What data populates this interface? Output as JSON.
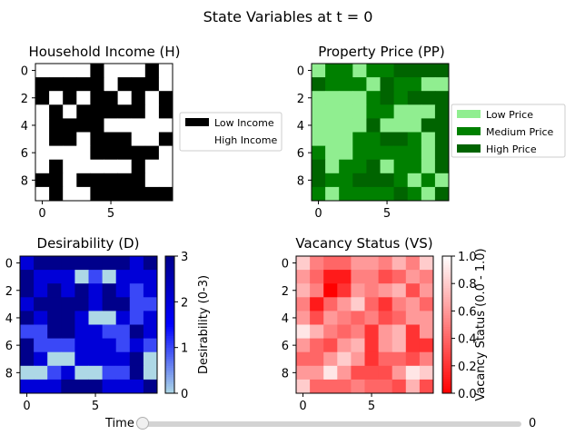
{
  "figure": {
    "suptitle": "State Variables at t = 0"
  },
  "slider": {
    "label": "Time",
    "value": "0",
    "min": 0,
    "max": 100,
    "position": 0
  },
  "chart_data": [
    {
      "type": "heatmap",
      "title": "Household Income (H)",
      "colors": [
        "#ffffff",
        "#000000"
      ],
      "xticks": [
        0,
        5
      ],
      "yticks": [
        0,
        2,
        4,
        6,
        8
      ],
      "legend": {
        "placement": "right",
        "entries": [
          {
            "label": "Low Income",
            "color": "#000000"
          },
          {
            "label": "High Income",
            "color": "#ffffff"
          }
        ]
      },
      "values": [
        [
          0,
          0,
          0,
          0,
          1,
          0,
          0,
          0,
          1,
          0
        ],
        [
          1,
          1,
          1,
          1,
          1,
          0,
          1,
          1,
          1,
          0
        ],
        [
          1,
          0,
          1,
          0,
          1,
          1,
          0,
          1,
          0,
          1
        ],
        [
          0,
          1,
          0,
          1,
          1,
          1,
          1,
          1,
          0,
          1
        ],
        [
          0,
          1,
          1,
          1,
          1,
          0,
          0,
          0,
          0,
          0
        ],
        [
          0,
          1,
          1,
          0,
          1,
          1,
          1,
          0,
          0,
          1
        ],
        [
          0,
          0,
          0,
          0,
          1,
          1,
          1,
          1,
          1,
          0
        ],
        [
          0,
          1,
          0,
          0,
          0,
          0,
          0,
          1,
          0,
          0
        ],
        [
          1,
          1,
          0,
          1,
          1,
          1,
          1,
          1,
          0,
          0
        ],
        [
          0,
          1,
          0,
          0,
          1,
          1,
          1,
          1,
          1,
          1
        ]
      ]
    },
    {
      "type": "heatmap",
      "title": "Property Price (PP)",
      "colors": [
        "#90ee90",
        "#008000",
        "#006400"
      ],
      "xticks": [
        0,
        5
      ],
      "yticks": [
        0,
        2,
        4,
        6,
        8
      ],
      "legend": {
        "placement": "right",
        "entries": [
          {
            "label": "Low Price",
            "color": "#90ee90"
          },
          {
            "label": "Medium Price",
            "color": "#008000"
          },
          {
            "label": "High Price",
            "color": "#006400"
          }
        ]
      },
      "values": [
        [
          0,
          1,
          1,
          0,
          1,
          1,
          2,
          2,
          2,
          2
        ],
        [
          2,
          1,
          1,
          1,
          0,
          2,
          1,
          1,
          0,
          0
        ],
        [
          0,
          0,
          0,
          0,
          1,
          2,
          1,
          2,
          2,
          2
        ],
        [
          0,
          0,
          0,
          0,
          1,
          1,
          0,
          0,
          0,
          2
        ],
        [
          0,
          0,
          0,
          0,
          2,
          0,
          0,
          0,
          2,
          2
        ],
        [
          0,
          0,
          0,
          1,
          1,
          2,
          2,
          1,
          0,
          2
        ],
        [
          1,
          0,
          0,
          1,
          1,
          1,
          1,
          1,
          0,
          2
        ],
        [
          2,
          0,
          1,
          1,
          2,
          0,
          1,
          1,
          0,
          2
        ],
        [
          2,
          1,
          1,
          2,
          2,
          2,
          1,
          0,
          1,
          0
        ],
        [
          1,
          0,
          1,
          1,
          1,
          1,
          2,
          1,
          0,
          2
        ]
      ]
    },
    {
      "type": "heatmap",
      "title": "Desirability (D)",
      "colorbar": {
        "label": "Desirability (0-3)",
        "ticks": [
          0,
          1,
          2,
          3
        ],
        "range": [
          0,
          3
        ],
        "colors": [
          "#add8e6",
          "#0000ff",
          "#00008b"
        ]
      },
      "xticks": [
        0,
        5
      ],
      "yticks": [
        0,
        2,
        4,
        6,
        8
      ],
      "values": [
        [
          2,
          3,
          3,
          3,
          3,
          3,
          3,
          3,
          2,
          3
        ],
        [
          3,
          2,
          2,
          2,
          0,
          1,
          0,
          2,
          2,
          2
        ],
        [
          3,
          2,
          3,
          2,
          3,
          2,
          3,
          2,
          1,
          2
        ],
        [
          2,
          3,
          3,
          3,
          3,
          2,
          3,
          3,
          1,
          1
        ],
        [
          3,
          2,
          3,
          3,
          2,
          0,
          0,
          2,
          1,
          2
        ],
        [
          1,
          1,
          3,
          3,
          2,
          2,
          1,
          1,
          3,
          2
        ],
        [
          3,
          1,
          1,
          1,
          2,
          2,
          2,
          1,
          2,
          1
        ],
        [
          3,
          2,
          0,
          0,
          2,
          2,
          2,
          2,
          3,
          0
        ],
        [
          0,
          0,
          1,
          2,
          0,
          0,
          1,
          1,
          3,
          0
        ],
        [
          2,
          2,
          2,
          3,
          3,
          3,
          2,
          2,
          2,
          3
        ]
      ]
    },
    {
      "type": "heatmap",
      "title": "Vacancy Status (VS)",
      "colorbar": {
        "label": "Vacancy Status (0.0 - 1.0)",
        "ticks": [
          0.0,
          0.2,
          0.4,
          0.6,
          0.8,
          1.0
        ],
        "range": [
          0,
          1
        ],
        "colors": [
          "#ff0000",
          "#ffffff"
        ]
      },
      "xticks": [
        0,
        5
      ],
      "yticks": [
        0,
        2,
        4,
        6,
        8
      ],
      "values": [
        [
          0.8,
          0.5,
          0.4,
          0.4,
          0.6,
          0.6,
          0.5,
          0.7,
          0.5,
          0.8
        ],
        [
          0.6,
          0.4,
          0.1,
          0.1,
          0.5,
          0.5,
          0.3,
          0.4,
          0.6,
          0.5
        ],
        [
          0.7,
          0.5,
          0.0,
          0.2,
          0.6,
          0.5,
          0.6,
          0.7,
          0.3,
          0.6
        ],
        [
          0.5,
          0.1,
          0.4,
          0.6,
          0.8,
          0.4,
          0.2,
          0.5,
          0.6,
          0.4
        ],
        [
          0.6,
          0.3,
          0.6,
          0.5,
          0.4,
          0.5,
          0.3,
          0.4,
          0.6,
          0.6
        ],
        [
          0.9,
          0.7,
          0.5,
          0.4,
          0.5,
          0.2,
          0.6,
          0.7,
          0.2,
          0.6
        ],
        [
          0.6,
          0.4,
          0.3,
          0.6,
          0.7,
          0.2,
          0.6,
          0.7,
          0.2,
          0.2
        ],
        [
          0.4,
          0.4,
          0.6,
          0.8,
          0.6,
          0.2,
          0.4,
          0.4,
          0.3,
          0.5
        ],
        [
          0.6,
          0.6,
          0.9,
          0.6,
          0.3,
          0.3,
          0.3,
          0.6,
          0.9,
          0.8
        ],
        [
          0.8,
          0.4,
          0.4,
          0.4,
          0.5,
          0.4,
          0.4,
          0.3,
          0.7,
          0.3
        ]
      ]
    }
  ]
}
